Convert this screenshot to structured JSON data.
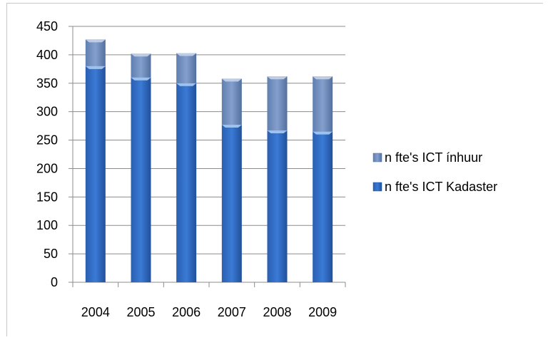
{
  "chart_data": {
    "type": "bar",
    "stacked": true,
    "categories": [
      "2004",
      "2005",
      "2006",
      "2007",
      "2008",
      "2009"
    ],
    "series": [
      {
        "name": "n fte's ICT Kadaster",
        "values": [
          380,
          360,
          350,
          277,
          267,
          265
        ],
        "color": "#2e6bc4"
      },
      {
        "name": "n fte's ICT ínhuur",
        "values": [
          47,
          42,
          53,
          81,
          95,
          97
        ],
        "color": "#6f8fbf"
      }
    ],
    "title": "",
    "xlabel": "",
    "ylabel": "",
    "ylim": [
      0,
      450
    ],
    "yticks": [
      "0",
      "50",
      "100",
      "150",
      "200",
      "250",
      "300",
      "350",
      "400",
      "450"
    ],
    "grid": true,
    "legend_position": "right"
  }
}
